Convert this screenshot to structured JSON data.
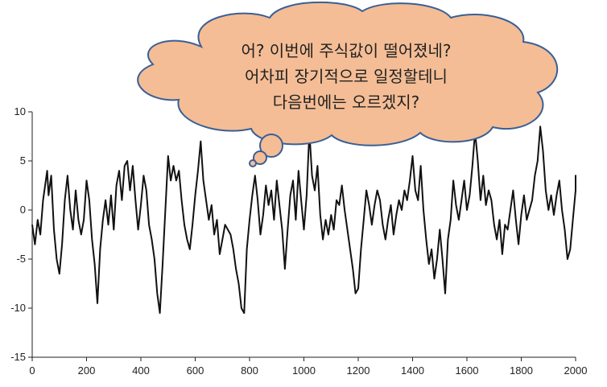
{
  "colors": {
    "line": "#111111",
    "axis": "#222222",
    "cloud_fill": "#F4BD95",
    "cloud_stroke": "#3A5F95"
  },
  "thought_bubble": {
    "lines": [
      "어? 이번에 주식값이 떨어졌네?",
      "어차피 장기적으로 일정할테니",
      "다음번에는 오르겠지?"
    ]
  },
  "chart_data": {
    "type": "line",
    "title": "",
    "xlabel": "",
    "ylabel": "",
    "xlim": [
      0,
      2000
    ],
    "ylim": [
      -15,
      10
    ],
    "xticks": [
      0,
      200,
      400,
      600,
      800,
      1000,
      1200,
      1400,
      1600,
      1800,
      2000
    ],
    "yticks": [
      -15,
      -10,
      -5,
      0,
      5,
      10
    ],
    "grid": false,
    "series": [
      {
        "points": [
          [
            0,
            -1.5
          ],
          [
            10,
            -3.5
          ],
          [
            20,
            -1
          ],
          [
            30,
            -2.5
          ],
          [
            40,
            1
          ],
          [
            50,
            3
          ],
          [
            55,
            4
          ],
          [
            60,
            1.5
          ],
          [
            70,
            3.5
          ],
          [
            80,
            -2
          ],
          [
            90,
            -5
          ],
          [
            100,
            -6.5
          ],
          [
            110,
            -3.5
          ],
          [
            120,
            1
          ],
          [
            130,
            3.5
          ],
          [
            140,
            0
          ],
          [
            150,
            -2
          ],
          [
            160,
            2
          ],
          [
            170,
            -1
          ],
          [
            180,
            -2.5
          ],
          [
            190,
            -1
          ],
          [
            200,
            3
          ],
          [
            210,
            1
          ],
          [
            220,
            -3
          ],
          [
            230,
            -5.5
          ],
          [
            240,
            -9.5
          ],
          [
            250,
            -4
          ],
          [
            260,
            -1
          ],
          [
            270,
            1
          ],
          [
            280,
            -1.5
          ],
          [
            290,
            1.5
          ],
          [
            300,
            -2
          ],
          [
            310,
            2.5
          ],
          [
            320,
            4
          ],
          [
            330,
            1
          ],
          [
            340,
            4.5
          ],
          [
            350,
            5
          ],
          [
            360,
            2
          ],
          [
            370,
            4.5
          ],
          [
            380,
            1
          ],
          [
            390,
            -2
          ],
          [
            400,
            0.5
          ],
          [
            410,
            3.5
          ],
          [
            420,
            2
          ],
          [
            430,
            -1.5
          ],
          [
            440,
            -3
          ],
          [
            450,
            -5
          ],
          [
            460,
            -8.5
          ],
          [
            470,
            -10.5
          ],
          [
            480,
            -5.5
          ],
          [
            490,
            0
          ],
          [
            500,
            5.5
          ],
          [
            510,
            3
          ],
          [
            520,
            4.5
          ],
          [
            530,
            3
          ],
          [
            540,
            4
          ],
          [
            550,
            1
          ],
          [
            560,
            -1.5
          ],
          [
            570,
            -3
          ],
          [
            580,
            -4
          ],
          [
            590,
            -1.5
          ],
          [
            600,
            1.5
          ],
          [
            610,
            4
          ],
          [
            620,
            7
          ],
          [
            630,
            3
          ],
          [
            640,
            1
          ],
          [
            650,
            -1
          ],
          [
            660,
            0.5
          ],
          [
            670,
            -2.5
          ],
          [
            680,
            -1
          ],
          [
            690,
            -4.5
          ],
          [
            700,
            -3
          ],
          [
            710,
            -1.5
          ],
          [
            720,
            -2
          ],
          [
            730,
            -2.5
          ],
          [
            740,
            -4
          ],
          [
            750,
            -6
          ],
          [
            760,
            -7.5
          ],
          [
            770,
            -10
          ],
          [
            780,
            -10.5
          ],
          [
            790,
            -4
          ],
          [
            800,
            -1
          ],
          [
            810,
            1.5
          ],
          [
            820,
            3.5
          ],
          [
            830,
            1
          ],
          [
            840,
            -2.5
          ],
          [
            850,
            -0.5
          ],
          [
            860,
            2.5
          ],
          [
            870,
            0.5
          ],
          [
            880,
            2
          ],
          [
            890,
            -1
          ],
          [
            900,
            3
          ],
          [
            910,
            0.5
          ],
          [
            920,
            -2
          ],
          [
            930,
            -6
          ],
          [
            940,
            -2
          ],
          [
            950,
            1.5
          ],
          [
            960,
            3
          ],
          [
            970,
            -1
          ],
          [
            980,
            4
          ],
          [
            990,
            1
          ],
          [
            1000,
            -2
          ],
          [
            1010,
            1.5
          ],
          [
            1020,
            8
          ],
          [
            1030,
            3.5
          ],
          [
            1040,
            2
          ],
          [
            1050,
            4.5
          ],
          [
            1060,
            -0.5
          ],
          [
            1070,
            -3
          ],
          [
            1080,
            -1
          ],
          [
            1090,
            -2.5
          ],
          [
            1100,
            -0.5
          ],
          [
            1110,
            -2
          ],
          [
            1120,
            1
          ],
          [
            1130,
            0.5
          ],
          [
            1140,
            2.5
          ],
          [
            1150,
            0
          ],
          [
            1160,
            -2
          ],
          [
            1170,
            -4
          ],
          [
            1180,
            -6
          ],
          [
            1190,
            -8.5
          ],
          [
            1200,
            -8
          ],
          [
            1210,
            -4
          ],
          [
            1220,
            -1
          ],
          [
            1230,
            2
          ],
          [
            1240,
            0.5
          ],
          [
            1250,
            -1.5
          ],
          [
            1260,
            0.5
          ],
          [
            1270,
            2
          ],
          [
            1280,
            1
          ],
          [
            1290,
            -1.5
          ],
          [
            1300,
            -3
          ],
          [
            1310,
            -1
          ],
          [
            1320,
            0.5
          ],
          [
            1330,
            -2.5
          ],
          [
            1340,
            -0.5
          ],
          [
            1350,
            1
          ],
          [
            1360,
            0
          ],
          [
            1370,
            2
          ],
          [
            1380,
            1
          ],
          [
            1390,
            3
          ],
          [
            1400,
            5.5
          ],
          [
            1410,
            2
          ],
          [
            1420,
            1
          ],
          [
            1430,
            4.5
          ],
          [
            1440,
            0
          ],
          [
            1450,
            -3
          ],
          [
            1460,
            -5.5
          ],
          [
            1470,
            -4
          ],
          [
            1480,
            -7
          ],
          [
            1490,
            -5
          ],
          [
            1500,
            -2
          ],
          [
            1510,
            -5
          ],
          [
            1520,
            -8.5
          ],
          [
            1530,
            -3
          ],
          [
            1540,
            -1
          ],
          [
            1550,
            3
          ],
          [
            1560,
            0.5
          ],
          [
            1570,
            -1
          ],
          [
            1580,
            1
          ],
          [
            1590,
            3
          ],
          [
            1600,
            0
          ],
          [
            1610,
            1.5
          ],
          [
            1620,
            4.5
          ],
          [
            1630,
            8
          ],
          [
            1640,
            5
          ],
          [
            1650,
            1
          ],
          [
            1660,
            3.5
          ],
          [
            1670,
            0.5
          ],
          [
            1680,
            2
          ],
          [
            1690,
            1
          ],
          [
            1700,
            -1.5
          ],
          [
            1710,
            -3
          ],
          [
            1720,
            -1
          ],
          [
            1730,
            -4.5
          ],
          [
            1740,
            -1.5
          ],
          [
            1750,
            -2
          ],
          [
            1760,
            0
          ],
          [
            1770,
            2
          ],
          [
            1780,
            -1
          ],
          [
            1790,
            -3.5
          ],
          [
            1800,
            -0.5
          ],
          [
            1810,
            1.5
          ],
          [
            1820,
            -1
          ],
          [
            1830,
            0
          ],
          [
            1840,
            1
          ],
          [
            1850,
            3.5
          ],
          [
            1860,
            5
          ],
          [
            1870,
            8.5
          ],
          [
            1880,
            6
          ],
          [
            1890,
            2
          ],
          [
            1900,
            0
          ],
          [
            1910,
            1.5
          ],
          [
            1920,
            -0.5
          ],
          [
            1930,
            1.5
          ],
          [
            1940,
            3
          ],
          [
            1950,
            0
          ],
          [
            1960,
            -2
          ],
          [
            1970,
            -5
          ],
          [
            1980,
            -4
          ],
          [
            1990,
            -1
          ],
          [
            2000,
            2
          ],
          [
            2010,
            3.5
          ],
          [
            2020,
            2
          ]
        ]
      }
    ]
  }
}
